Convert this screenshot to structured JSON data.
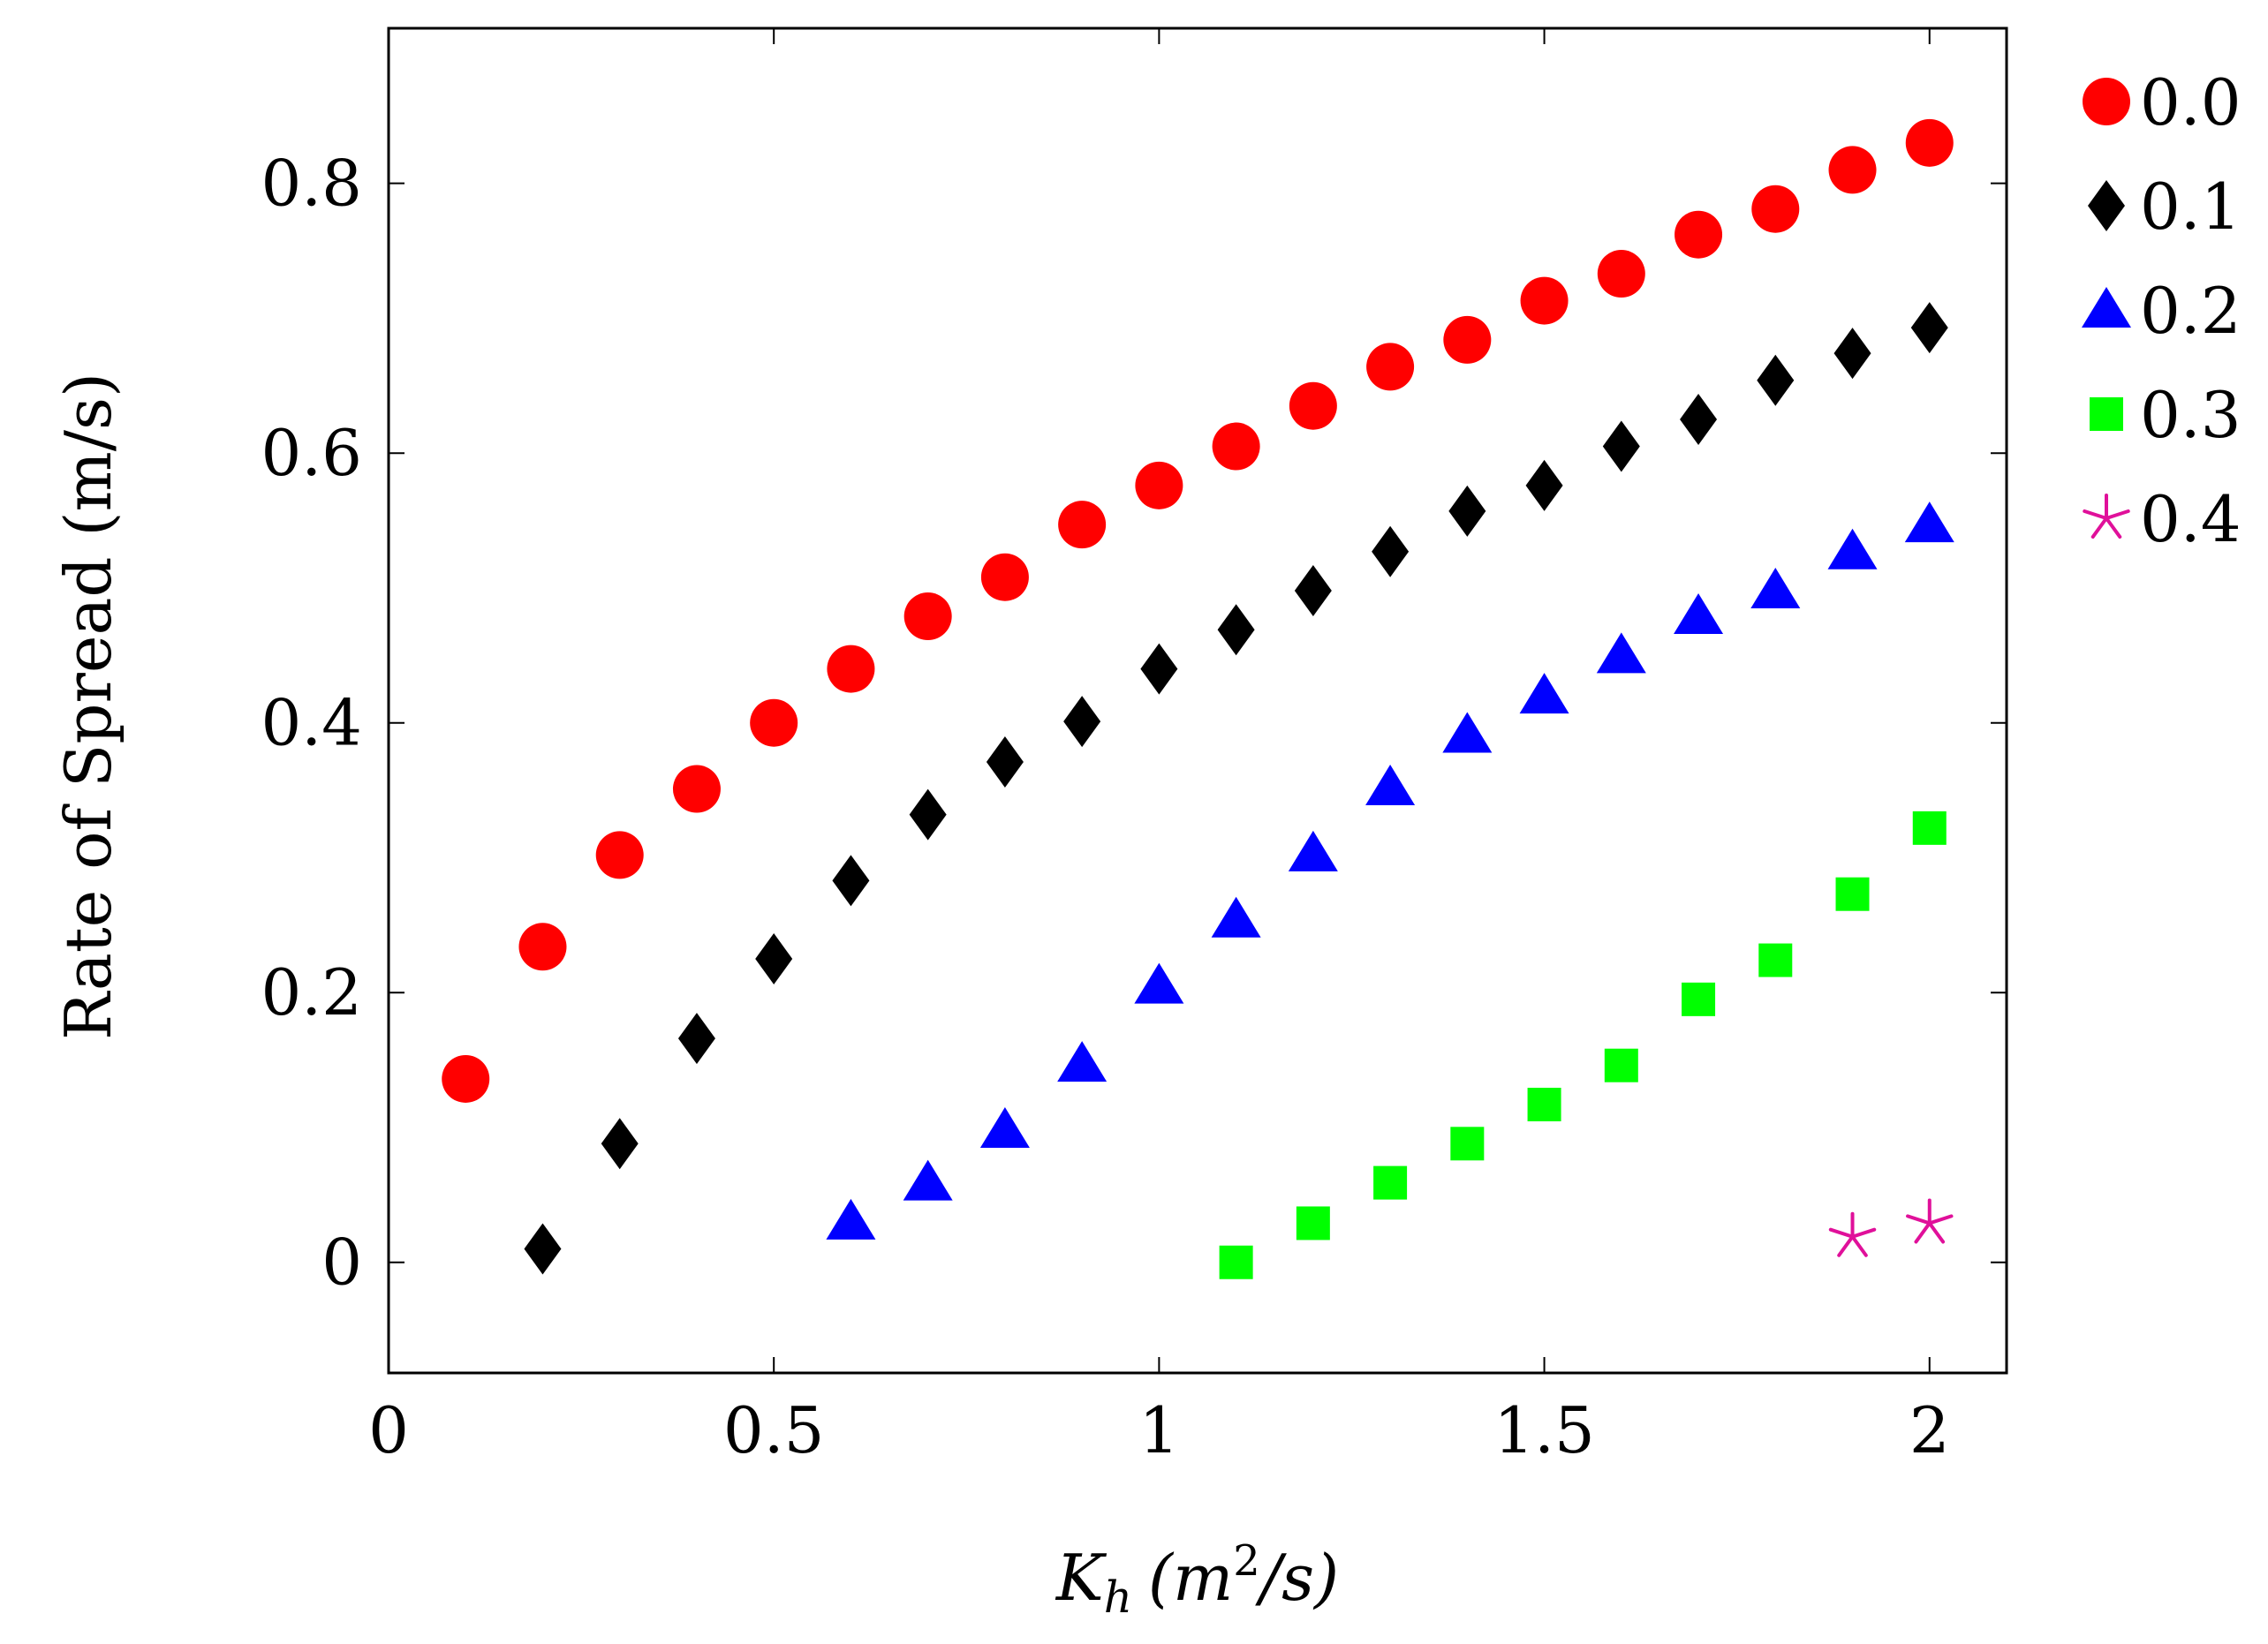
{
  "chart_data": {
    "type": "scatter",
    "title": "",
    "xlabel": {
      "main": "K",
      "sub": "h",
      "units_open": "(m",
      "units_sup": "2",
      "units_close": "/s)"
    },
    "ylabel": "Rate of Spread (m/s)",
    "xlim": [
      0,
      2.1
    ],
    "ylim": [
      -0.082,
      0.915
    ],
    "xticks": [
      0,
      0.5,
      1,
      1.5,
      2
    ],
    "xtick_labels": [
      "0",
      "0.5",
      "1",
      "1.5",
      "2"
    ],
    "yticks": [
      0,
      0.2,
      0.4,
      0.6,
      0.8
    ],
    "ytick_labels": [
      "0",
      "0.2",
      "0.4",
      "0.6",
      "0.8"
    ],
    "grid": false,
    "legend_position": "outside-right",
    "series": [
      {
        "name": "0.0",
        "marker": "circle",
        "color": "#ff0000",
        "x": [
          0.1,
          0.2,
          0.3,
          0.4,
          0.5,
          0.6,
          0.7,
          0.8,
          0.9,
          1.0,
          1.1,
          1.2,
          1.3,
          1.4,
          1.5,
          1.6,
          1.7,
          1.8,
          1.9,
          2.0
        ],
        "y": [
          0.136,
          0.234,
          0.302,
          0.351,
          0.4,
          0.44,
          0.479,
          0.508,
          0.547,
          0.576,
          0.605,
          0.635,
          0.664,
          0.684,
          0.713,
          0.733,
          0.762,
          0.781,
          0.81,
          0.83
        ]
      },
      {
        "name": "0.1",
        "marker": "diamond",
        "color": "#000000",
        "x": [
          0.2,
          0.3,
          0.4,
          0.5,
          0.6,
          0.7,
          0.8,
          0.9,
          1.0,
          1.1,
          1.2,
          1.3,
          1.4,
          1.5,
          1.6,
          1.7,
          1.8,
          1.9,
          2.0
        ],
        "y": [
          0.01,
          0.088,
          0.166,
          0.225,
          0.283,
          0.332,
          0.371,
          0.401,
          0.44,
          0.469,
          0.498,
          0.527,
          0.557,
          0.576,
          0.605,
          0.625,
          0.654,
          0.674,
          0.693
        ]
      },
      {
        "name": "0.2",
        "marker": "triangle",
        "color": "#0000ff",
        "x": [
          0.6,
          0.7,
          0.8,
          0.9,
          1.0,
          1.1,
          1.2,
          1.3,
          1.4,
          1.5,
          1.6,
          1.7,
          1.8,
          1.9,
          2.0
        ],
        "y": [
          0.03,
          0.059,
          0.098,
          0.147,
          0.205,
          0.254,
          0.303,
          0.352,
          0.391,
          0.42,
          0.45,
          0.479,
          0.498,
          0.527,
          0.547
        ]
      },
      {
        "name": "0.3",
        "marker": "square",
        "color": "#00ff00",
        "x": [
          1.1,
          1.2,
          1.3,
          1.4,
          1.5,
          1.6,
          1.7,
          1.8,
          1.9,
          2.0
        ],
        "y": [
          0.0,
          0.029,
          0.059,
          0.088,
          0.117,
          0.146,
          0.195,
          0.224,
          0.273,
          0.322
        ]
      },
      {
        "name": "0.4",
        "marker": "star",
        "color": "#e0109a",
        "x": [
          1.9,
          2.0
        ],
        "y": [
          0.019,
          0.029
        ]
      }
    ]
  }
}
